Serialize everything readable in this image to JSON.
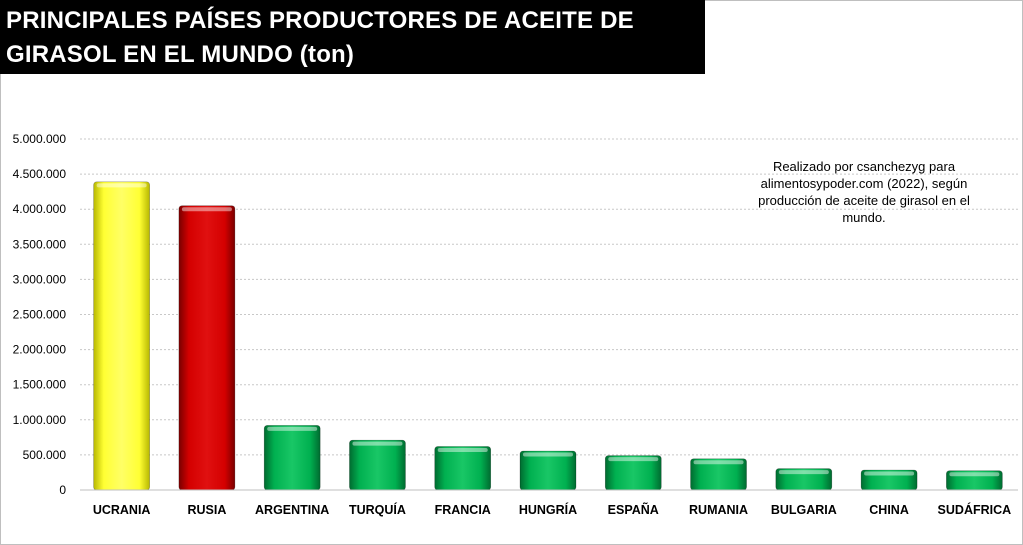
{
  "title_lines": [
    "PRINCIPALES PAÍSES PRODUCTORES DE ACEITE DE",
    "GIRASOL EN EL MUNDO (ton)"
  ],
  "annotation": "Realizado por csanchezyg para alimentosypoder.com (2022), según producción de aceite de girasol en el mundo.",
  "colors": {
    "yellow": "#ffff00",
    "red": "#cc0000",
    "green": "#00b050",
    "gridline": "#c8c8c8"
  },
  "chart_data": {
    "type": "bar",
    "title": "PRINCIPALES PAÍSES PRODUCTORES DE ACEITE DE GIRASOL EN EL MUNDO (ton)",
    "xlabel": "",
    "ylabel": "",
    "ylim": [
      0,
      5000000
    ],
    "grid": true,
    "yticks": [
      0,
      500000,
      1000000,
      1500000,
      2000000,
      2500000,
      3000000,
      3500000,
      4000000,
      4500000,
      5000000
    ],
    "ytick_labels": [
      "0",
      "500.000",
      "1.000.000",
      "1.500.000",
      "2.000.000",
      "2.500.000",
      "3.000.000",
      "3.500.000",
      "4.000.000",
      "4.500.000",
      "5.000.000"
    ],
    "categories": [
      "UCRANIA",
      "RUSIA",
      "ARGENTINA",
      "TURQUÍA",
      "FRANCIA",
      "HUNGRÍA",
      "ESPAÑA",
      "RUMANIA",
      "BULGARIA",
      "CHINA",
      "SUDÁFRICA"
    ],
    "values": [
      4390000,
      4050000,
      920000,
      710000,
      620000,
      555000,
      490000,
      445000,
      305000,
      285000,
      275000
    ],
    "bar_colors": [
      "#ffff00",
      "#cc0000",
      "#00b050",
      "#00b050",
      "#00b050",
      "#00b050",
      "#00b050",
      "#00b050",
      "#00b050",
      "#00b050",
      "#00b050"
    ]
  }
}
